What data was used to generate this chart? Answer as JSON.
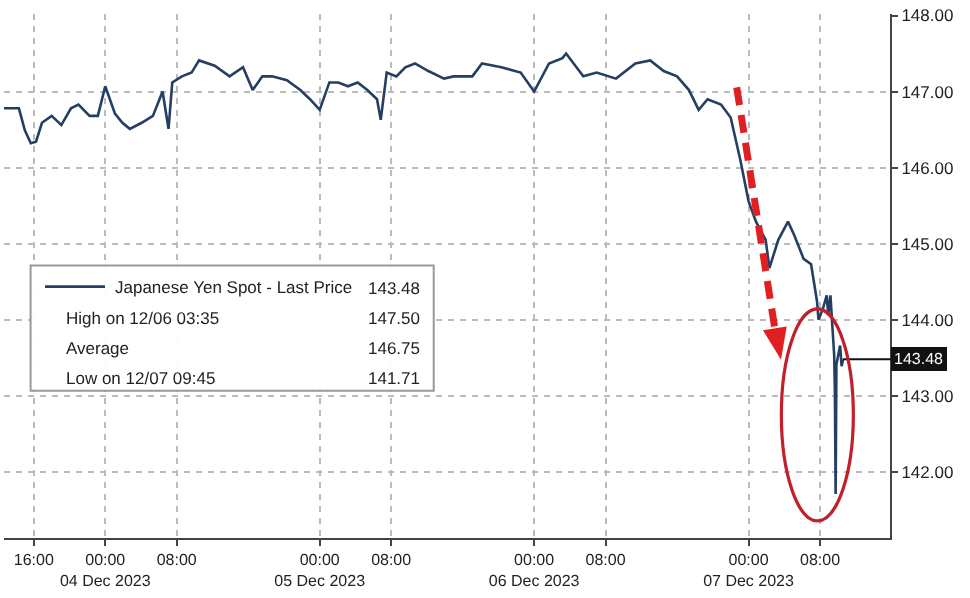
{
  "chart_data": {
    "type": "line",
    "x": [
      "2023-12-03T12:40",
      "2023-12-03T14:20",
      "2023-12-03T15:00",
      "2023-12-03T15:40",
      "2023-12-03T16:15",
      "2023-12-03T16:55",
      "2023-12-03T18:00",
      "2023-12-03T19:05",
      "2023-12-03T20:10",
      "2023-12-03T21:00",
      "2023-12-03T22:15",
      "2023-12-03T23:10",
      "2023-12-04T00:00",
      "2023-12-04T01:05",
      "2023-12-04T01:55",
      "2023-12-04T02:45",
      "2023-12-04T04:05",
      "2023-12-04T05:20",
      "2023-12-04T06:25",
      "2023-12-04T07:05",
      "2023-12-04T07:30",
      "2023-12-04T08:35",
      "2023-12-04T09:40",
      "2023-12-04T10:30",
      "2023-12-04T12:15",
      "2023-12-04T13:55",
      "2023-12-04T15:25",
      "2023-12-04T16:30",
      "2023-12-04T17:35",
      "2023-12-04T18:40",
      "2023-12-04T20:20",
      "2023-12-04T21:50",
      "2023-12-04T22:55",
      "2023-12-05T00:00",
      "2023-12-05T01:05",
      "2023-12-05T02:05",
      "2023-12-05T03:10",
      "2023-12-05T04:15",
      "2023-12-05T05:20",
      "2023-12-05T06:25",
      "2023-12-05T06:50",
      "2023-12-05T07:30",
      "2023-12-05T08:35",
      "2023-12-05T09:35",
      "2023-12-05T10:40",
      "2023-12-05T12:10",
      "2023-12-05T13:55",
      "2023-12-05T15:00",
      "2023-12-05T17:05",
      "2023-12-05T18:10",
      "2023-12-05T20:20",
      "2023-12-05T22:30",
      "2023-12-06T00:00",
      "2023-12-06T01:40",
      "2023-12-06T03:10",
      "2023-12-06T03:35",
      "2023-12-06T05:30",
      "2023-12-06T07:00",
      "2023-12-06T09:10",
      "2023-12-06T11:20",
      "2023-12-06T13:00",
      "2023-12-06T14:30",
      "2023-12-06T16:00",
      "2023-12-06T17:20",
      "2023-12-06T18:25",
      "2023-12-06T19:25",
      "2023-12-06T20:55",
      "2023-12-06T22:00",
      "2023-12-06T23:05",
      "2023-12-07T00:00",
      "2023-12-07T00:50",
      "2023-12-07T01:55",
      "2023-12-07T02:20",
      "2023-12-07T03:20",
      "2023-12-07T04:25",
      "2023-12-07T05:05",
      "2023-12-07T06:10",
      "2023-12-07T07:00",
      "2023-12-07T07:40",
      "2023-12-07T07:50",
      "2023-12-07T08:20",
      "2023-12-07T08:45",
      "2023-12-07T08:55",
      "2023-12-07T09:10",
      "2023-12-07T09:35",
      "2023-12-07T09:40",
      "2023-12-07T09:45",
      "2023-12-07T09:50",
      "2023-12-07T10:15",
      "2023-12-07T10:25",
      "2023-12-07T10:35"
    ],
    "series": [
      {
        "name": "Japanese Yen Spot - Last Price",
        "color": "#253f63",
        "values": [
          146.78,
          146.78,
          146.49,
          146.32,
          146.34,
          146.59,
          146.68,
          146.56,
          146.78,
          146.83,
          146.68,
          146.68,
          147.07,
          146.71,
          146.59,
          146.51,
          146.59,
          146.68,
          147.0,
          146.51,
          147.12,
          147.2,
          147.25,
          147.41,
          147.34,
          147.2,
          147.32,
          147.02,
          147.2,
          147.2,
          147.15,
          147.02,
          146.9,
          146.76,
          147.12,
          147.12,
          147.07,
          147.12,
          147.02,
          146.9,
          146.63,
          147.25,
          147.2,
          147.32,
          147.37,
          147.27,
          147.17,
          147.2,
          147.2,
          147.37,
          147.32,
          147.25,
          147.0,
          147.37,
          147.44,
          147.5,
          147.2,
          147.25,
          147.17,
          147.37,
          147.41,
          147.27,
          147.2,
          147.02,
          146.76,
          146.9,
          146.83,
          146.66,
          146.1,
          145.56,
          145.29,
          145.05,
          144.68,
          145.05,
          145.29,
          145.12,
          144.8,
          144.73,
          144.24,
          144.0,
          144.15,
          144.32,
          144.07,
          144.32,
          143.54,
          143.05,
          141.71,
          143.41,
          143.66,
          143.39,
          143.48
        ]
      }
    ],
    "xlim": [
      "2023-12-03T12:40",
      "2023-12-07T15:50"
    ],
    "xticks": [
      {
        "value": "2023-12-03T16:00",
        "label": "16:00"
      },
      {
        "value": "2023-12-04T00:00",
        "label": "00:00\n04 Dec 2023"
      },
      {
        "value": "2023-12-04T08:00",
        "label": "08:00"
      },
      {
        "value": "2023-12-05T00:00",
        "label": "00:00\n05 Dec 2023"
      },
      {
        "value": "2023-12-05T08:00",
        "label": "08:00"
      },
      {
        "value": "2023-12-06T00:00",
        "label": "00:00\n06 Dec 2023"
      },
      {
        "value": "2023-12-06T08:00",
        "label": "08:00"
      },
      {
        "value": "2023-12-07T00:00",
        "label": "00:00\n07 Dec 2023"
      },
      {
        "value": "2023-12-07T08:00",
        "label": "08:00"
      }
    ],
    "ylim": [
      141.13,
      148.02
    ],
    "yticks": [
      {
        "value": 142,
        "label": "142.00"
      },
      {
        "value": 143,
        "label": "143.00"
      },
      {
        "value": 144,
        "label": "144.00"
      },
      {
        "value": 145,
        "label": "145.00"
      },
      {
        "value": 146,
        "label": "146.00"
      },
      {
        "value": 147,
        "label": "147.00"
      },
      {
        "value": 148,
        "label": "148.00"
      }
    ],
    "grid": true,
    "legend": "left",
    "marker": "none",
    "line_style": "solid",
    "annotations": [
      {
        "text": "143.48",
        "x": "2023-12-07T10:35",
        "y": 143.48
      },
      "143.48",
      "High on 12/06 03:35",
      "147.50",
      "Average",
      "146.75",
      "Low on 12/07 09:45",
      "141.71"
    ]
  }
}
